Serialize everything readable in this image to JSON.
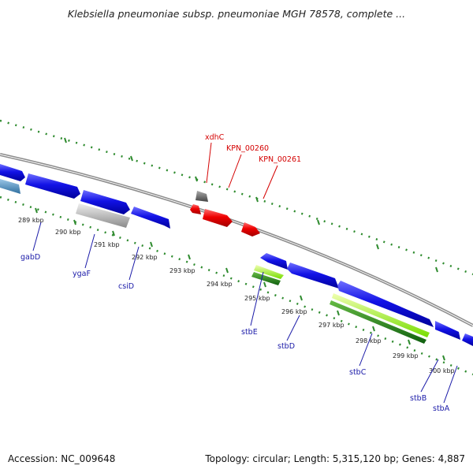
{
  "title": "Klebsiella pneumoniae subsp. pneumoniae MGH 78578, complete ...",
  "footer": {
    "accession": "Accession: NC_009648",
    "topology": "Topology: circular; Length: 5,315,120 bp; Genes: 4,887"
  },
  "ticks": [
    {
      "label": "289 kbp"
    },
    {
      "label": "290 kbp"
    },
    {
      "label": "291 kbp"
    },
    {
      "label": "292 kbp"
    },
    {
      "label": "293 kbp"
    },
    {
      "label": "294 kbp"
    },
    {
      "label": "295 kbp"
    },
    {
      "label": "296 kbp"
    },
    {
      "label": "297 kbp"
    },
    {
      "label": "298 kbp"
    },
    {
      "label": "299 kbp"
    },
    {
      "label": "300 kbp"
    }
  ],
  "genes_below": [
    {
      "name": "gabD"
    },
    {
      "name": "ygaF"
    },
    {
      "name": "csiD"
    },
    {
      "name": "stbE"
    },
    {
      "name": "stbD"
    },
    {
      "name": "stbC"
    },
    {
      "name": "stbB"
    },
    {
      "name": "stbA"
    }
  ],
  "genes_above": [
    {
      "name": "xdhC"
    },
    {
      "name": "KPN_00260"
    },
    {
      "name": "KPN_00261"
    }
  ],
  "colors": {
    "cds_blue": "#1010e0",
    "cds_red": "#e60000",
    "rna_green": "#228b22",
    "pseudo_grey": "#b0b0b0",
    "backbone": "#888888",
    "dots": "#2e8b2e"
  }
}
